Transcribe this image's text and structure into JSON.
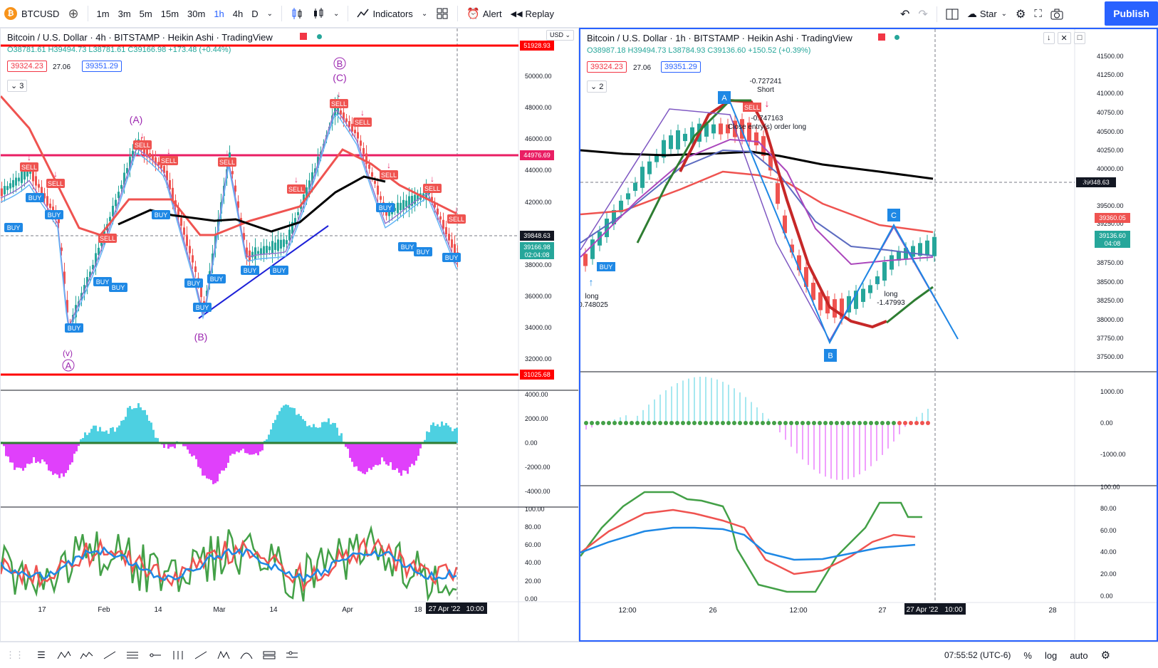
{
  "toolbar": {
    "symbol": "BTCUSD",
    "timeframes": [
      "1m",
      "3m",
      "5m",
      "15m",
      "30m",
      "1h",
      "4h",
      "D"
    ],
    "active_timeframe": "1h",
    "indicators_label": "Indicators",
    "alert_label": "Alert",
    "replay_label": "Replay",
    "star_label": "Star",
    "publish_label": "Publish"
  },
  "left_chart": {
    "title": "Bitcoin / U.S. Dollar · 4h · BITSTAMP · Heikin Ashi · TradingView",
    "ohlc": "O38781.61 H39494.73 L38781.61 C39166.98 +173.48 (+0.44%)",
    "chip_red": "39324.23",
    "chip_mid": "27.06",
    "chip_blue": "39351.29",
    "collapse_count": "3",
    "currency": "USD",
    "price_axis": [
      "50000.00",
      "48000.00",
      "46000.00",
      "44000.00",
      "42000.00",
      "38000.00",
      "36000.00",
      "34000.00",
      "32000.00"
    ],
    "tags": {
      "top_red": "51928.93",
      "pink": "44976.69",
      "grey": "39848.63",
      "current": "39166.98",
      "countdown": "02:04:08",
      "bottom_red": "31025.68"
    },
    "macd_axis": [
      "4000.00",
      "2000.00",
      "0.00",
      "-2000.00",
      "-4000.00"
    ],
    "rsi_axis": [
      "100.00",
      "80.00",
      "60.00",
      "40.00",
      "20.00",
      "0.00"
    ],
    "time_axis": [
      "17",
      "Feb",
      "14",
      "Mar",
      "14",
      "Apr",
      "18"
    ],
    "time_cursor": "27 Apr '22",
    "time_cursor2": "10:00",
    "wave_labels": {
      "A_top": "(A)",
      "B_circle": "B",
      "C_paren": "(C)",
      "B_paren": "(B)",
      "v": "(v)",
      "A_circle": "A"
    },
    "signals": {
      "buy": "BUY",
      "sell": "SELL"
    }
  },
  "right_chart": {
    "title": "Bitcoin / U.S. Dollar · 1h · BITSTAMP · Heikin Ashi · TradingView",
    "ohlc": "O38987.18 H39494.73 L38784.93 C39136.60 +150.52 (+0.39%)",
    "chip_red": "39324.23",
    "chip_mid": "27.06",
    "chip_blue": "39351.29",
    "collapse_count": "2",
    "price_axis": [
      "41500.00",
      "41250.00",
      "41000.00",
      "40750.00",
      "40500.00",
      "40250.00",
      "40000.00",
      "39500.00",
      "39250.00",
      "38750.00",
      "38500.00",
      "38250.00",
      "38000.00",
      "37750.00",
      "37500.00"
    ],
    "tags": {
      "crosshair": "39848.63",
      "red": "39360.05",
      "current": "39136.60",
      "countdown": "04:08"
    },
    "macd_axis": [
      "1000.00",
      "0.00",
      "-1000.00"
    ],
    "rsi_axis": [
      "100.00",
      "80.00",
      "60.00",
      "40.00",
      "20.00",
      "0.00"
    ],
    "time_axis": [
      "12:00",
      "26",
      "12:00",
      "27",
      "28"
    ],
    "time_cursor": "27 Apr '22",
    "time_cursor2": "10:00",
    "annotations": {
      "short_value": "-0.727241",
      "short_label": "Short",
      "sell_value": "-0.747163",
      "close_entry": "Close entry(s) order long",
      "long_label": "long",
      "long_value": "0.748025",
      "long2_label": "long",
      "long2_value": "-1.47993",
      "point_a": "A",
      "point_b": "B",
      "point_c": "C"
    }
  },
  "bottom": {
    "clock": "07:55:52 (UTC-6)",
    "percent": "%",
    "log": "log",
    "auto": "auto"
  },
  "colors": {
    "accent": "#2962ff",
    "up": "#26a69a",
    "down": "#ef5350",
    "green": "#4caf50",
    "magenta": "#e040fb",
    "cyan": "#4dd0e1"
  }
}
